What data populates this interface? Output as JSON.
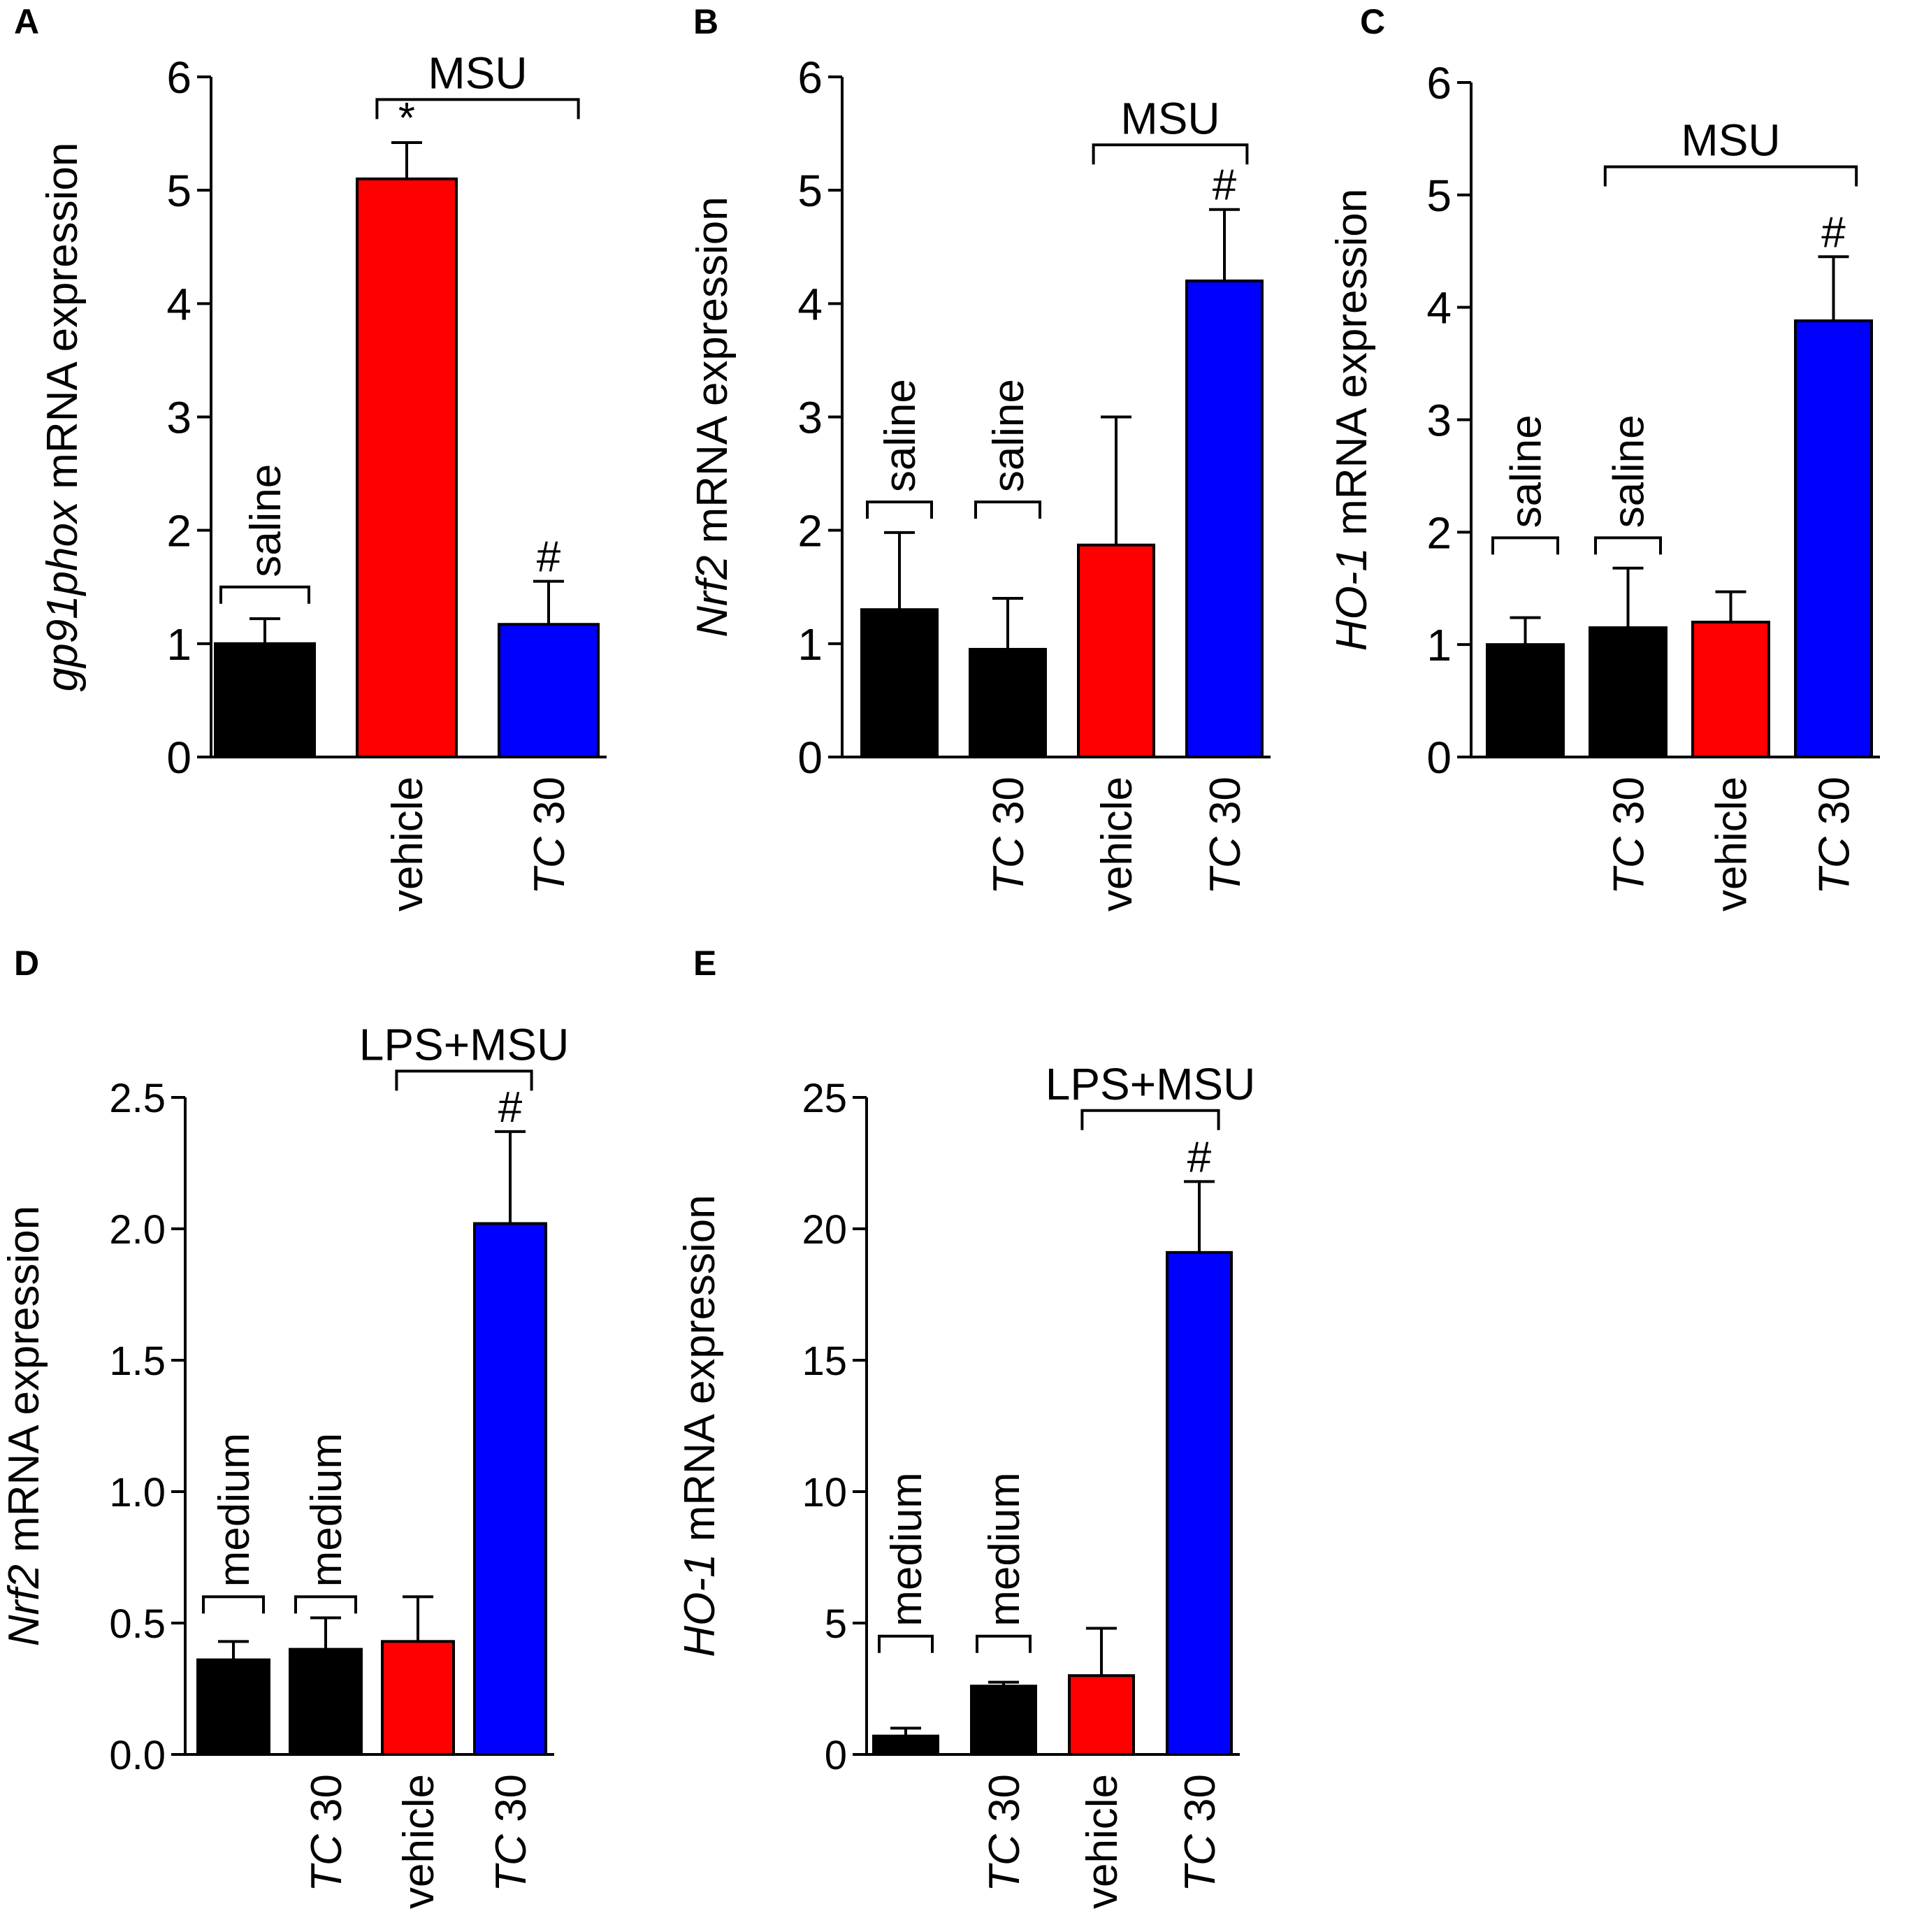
{
  "figure": {
    "background": "#ffffff",
    "colors": {
      "black": "#000000",
      "red": "#ff0000",
      "blue": "#0000ff"
    }
  },
  "chart_data": [
    {
      "panel": "A",
      "type": "bar",
      "ylabel_italic": "gp91phox",
      "ylabel_rest": " mRNA expression",
      "ylim": [
        0,
        6
      ],
      "yticks": [
        "0",
        "1",
        "2",
        "3",
        "4",
        "5",
        "6"
      ],
      "categories": [
        "",
        "vehicle",
        "TC 30"
      ],
      "values": [
        1.0,
        5.1,
        1.17
      ],
      "errors": [
        0.22,
        0.32,
        0.38
      ],
      "bar_colors": [
        "#000000",
        "#ff0000",
        "#0000ff"
      ],
      "significance": [
        "",
        "*",
        "#"
      ],
      "brackets": [
        {
          "label": "saline",
          "bars": [
            0,
            0
          ],
          "y": 1.5,
          "orientation": "vertical"
        },
        {
          "label": "MSU",
          "bars": [
            1,
            2
          ],
          "y": 5.8,
          "orientation": "horizontal"
        }
      ]
    },
    {
      "panel": "B",
      "type": "bar",
      "ylabel_italic": "Nrf2",
      "ylabel_rest": " mRNA expression",
      "ylim": [
        0,
        6
      ],
      "yticks": [
        "0",
        "1",
        "2",
        "3",
        "4",
        "5",
        "6"
      ],
      "categories": [
        "",
        "TC 30",
        "vehicle",
        "TC 30"
      ],
      "values": [
        1.3,
        0.95,
        1.87,
        4.2
      ],
      "errors": [
        0.68,
        0.45,
        1.13,
        0.63
      ],
      "bar_colors": [
        "#000000",
        "#000000",
        "#ff0000",
        "#0000ff"
      ],
      "significance": [
        "",
        "",
        "",
        "#"
      ],
      "brackets": [
        {
          "label": "saline",
          "bars": [
            0,
            0
          ],
          "y": 2.25,
          "orientation": "vertical"
        },
        {
          "label": "saline",
          "bars": [
            1,
            1
          ],
          "y": 2.25,
          "orientation": "vertical"
        },
        {
          "label": "MSU",
          "bars": [
            2,
            3
          ],
          "y": 5.4,
          "orientation": "horizontal"
        }
      ]
    },
    {
      "panel": "C",
      "type": "bar",
      "ylabel_italic": "HO-1",
      "ylabel_rest": " mRNA expression",
      "ylim": [
        0,
        6
      ],
      "yticks": [
        "0",
        "1",
        "2",
        "3",
        "4",
        "5",
        "6"
      ],
      "categories": [
        "",
        "TC 30",
        "vehicle",
        "TC 30"
      ],
      "values": [
        1.0,
        1.15,
        1.2,
        3.88
      ],
      "errors": [
        0.24,
        0.53,
        0.27,
        0.57
      ],
      "bar_colors": [
        "#000000",
        "#000000",
        "#ff0000",
        "#0000ff"
      ],
      "significance": [
        "",
        "",
        "",
        "#"
      ],
      "brackets": [
        {
          "label": "saline",
          "bars": [
            0,
            0
          ],
          "y": 1.95,
          "orientation": "vertical"
        },
        {
          "label": "saline",
          "bars": [
            1,
            1
          ],
          "y": 1.95,
          "orientation": "vertical"
        },
        {
          "label": "MSU",
          "bars": [
            1,
            3
          ],
          "y": 5.25,
          "orientation": "horizontal"
        }
      ]
    },
    {
      "panel": "D",
      "type": "bar",
      "ylabel_italic": "Nrf2",
      "ylabel_rest": " mRNA expression",
      "ylim": [
        0,
        2.5
      ],
      "yticks": [
        "0.0",
        "0.5",
        "1.0",
        "1.5",
        "2.0",
        "2.5"
      ],
      "categories": [
        "",
        "TC 30",
        "vehicle",
        "TC 30"
      ],
      "values": [
        0.36,
        0.4,
        0.43,
        2.02
      ],
      "errors": [
        0.07,
        0.12,
        0.17,
        0.35
      ],
      "bar_colors": [
        "#000000",
        "#000000",
        "#ff0000",
        "#0000ff"
      ],
      "significance": [
        "",
        "",
        "",
        "#"
      ],
      "brackets": [
        {
          "label": "medium",
          "bars": [
            0,
            0
          ],
          "y": 0.6,
          "orientation": "vertical"
        },
        {
          "label": "medium",
          "bars": [
            1,
            1
          ],
          "y": 0.6,
          "orientation": "vertical"
        },
        {
          "label": "LPS+MSU",
          "bars": [
            2,
            3
          ],
          "y": 2.6,
          "orientation": "horizontal"
        }
      ]
    },
    {
      "panel": "E",
      "type": "bar",
      "ylabel_italic": "HO-1",
      "ylabel_rest": " mRNA expression",
      "ylim": [
        0,
        25
      ],
      "yticks": [
        "0",
        "5",
        "10",
        "15",
        "20",
        "25"
      ],
      "categories": [
        "",
        "TC 30",
        "vehicle",
        "TC 30"
      ],
      "values": [
        0.7,
        2.6,
        3.0,
        19.1
      ],
      "errors": [
        0.3,
        0.15,
        1.8,
        2.7
      ],
      "bar_colors": [
        "#000000",
        "#000000",
        "#ff0000",
        "#0000ff"
      ],
      "significance": [
        "",
        "",
        "",
        "#"
      ],
      "brackets": [
        {
          "label": "medium",
          "bars": [
            0,
            0
          ],
          "y": 4.5,
          "orientation": "vertical"
        },
        {
          "label": "medium",
          "bars": [
            1,
            1
          ],
          "y": 4.5,
          "orientation": "vertical"
        },
        {
          "label": "LPS+MSU",
          "bars": [
            2,
            3
          ],
          "y": 24.5,
          "orientation": "horizontal"
        }
      ]
    }
  ]
}
